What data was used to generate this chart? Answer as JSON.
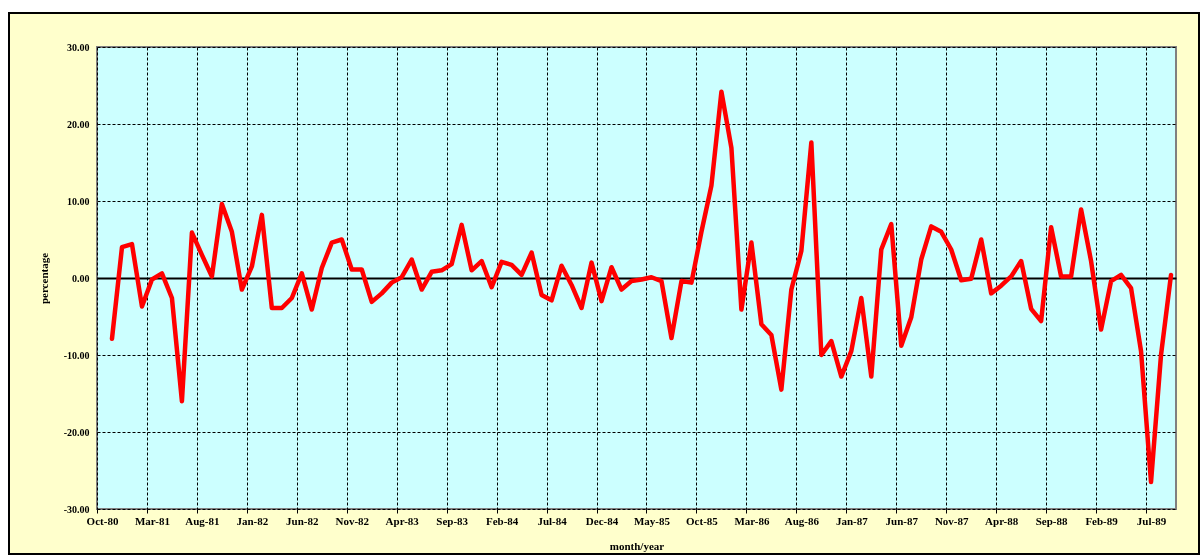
{
  "chart_data": {
    "type": "line",
    "xlabel": "month/year",
    "ylabel": "percentage",
    "categories": [
      "Oct-80",
      null,
      null,
      null,
      null,
      "Mar-81",
      null,
      null,
      null,
      null,
      "Aug-81",
      null,
      null,
      null,
      null,
      "Jan-82",
      null,
      null,
      null,
      null,
      "Jun-82",
      null,
      null,
      null,
      null,
      "Nov-82",
      null,
      null,
      null,
      null,
      "Apr-83",
      null,
      null,
      null,
      null,
      "Sep-83",
      null,
      null,
      null,
      null,
      "Feb-84",
      null,
      null,
      null,
      null,
      "Jul-84",
      null,
      null,
      null,
      null,
      "Dec-84",
      null,
      null,
      null,
      null,
      "May-85",
      null,
      null,
      null,
      null,
      "Oct-85",
      null,
      null,
      null,
      null,
      "Mar-86",
      null,
      null,
      null,
      null,
      "Aug-86",
      null,
      null,
      null,
      null,
      "Jan-87",
      null,
      null,
      null,
      null,
      "Jun-87",
      null,
      null,
      null,
      null,
      "Nov-87",
      null,
      null,
      null,
      null,
      "Apr-88",
      null,
      null,
      null,
      null,
      "Sep-88",
      null,
      null,
      null,
      null,
      "Feb-89",
      null,
      null,
      null,
      null,
      "Jul-89",
      null,
      null
    ],
    "series": [
      {
        "color": "#ff0000",
        "values": [
          null,
          -7.9,
          4.0,
          4.4,
          -3.7,
          -0.2,
          0.6,
          -2.6,
          -16.0,
          5.9,
          3.0,
          0.2,
          9.6,
          6.0,
          -1.5,
          1.5,
          8.2,
          -3.9,
          -3.9,
          -2.6,
          0.6,
          -4.1,
          1.3,
          4.6,
          5.0,
          1.1,
          1.1,
          -3.1,
          -2.0,
          -0.6,
          0.1,
          2.4,
          -1.5,
          0.8,
          1.0,
          1.8,
          6.9,
          1.0,
          2.2,
          -1.2,
          2.1,
          1.7,
          0.4,
          3.3,
          -2.2,
          -2.9,
          1.6,
          -0.9,
          -3.9,
          2.0,
          -3.0,
          1.4,
          -1.5,
          -0.4,
          -0.2,
          0.1,
          -0.4,
          -7.8,
          -0.4,
          -0.6,
          6.0,
          12.0,
          24.2,
          16.9,
          -4.1,
          4.6,
          -6.0,
          -7.4,
          -14.5,
          -1.5,
          3.5,
          17.6,
          -10.0,
          -8.2,
          -12.8,
          -9.5,
          -2.6,
          -12.8,
          3.7,
          7.0,
          -8.8,
          -5.1,
          2.4,
          6.7,
          6.0,
          3.7,
          -0.3,
          -0.1,
          5.0,
          -2.0,
          -1.0,
          0.2,
          2.2,
          -4.0,
          -5.6,
          6.6,
          0.2,
          0.2,
          8.9,
          2.2,
          -6.7,
          -0.4,
          0.4,
          -1.3,
          -9.5,
          -26.5,
          -10.0,
          0.4
        ]
      }
    ],
    "ylim": [
      -30,
      30
    ],
    "yticks": [
      {
        "value": -30,
        "label": "-30.00"
      },
      {
        "value": -20,
        "label": "-20.00"
      },
      {
        "value": -10,
        "label": "-10.00"
      },
      {
        "value": 0,
        "label": "0.00"
      },
      {
        "value": 10,
        "label": "10.00"
      },
      {
        "value": 20,
        "label": "20.00"
      },
      {
        "value": 30,
        "label": "30.00"
      }
    ],
    "grid": true
  }
}
